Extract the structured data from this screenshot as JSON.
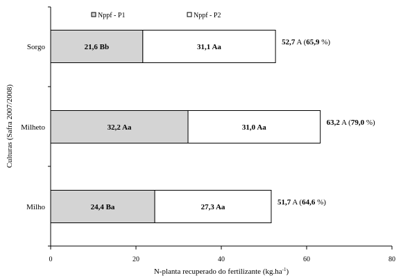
{
  "chart_data": {
    "type": "bar",
    "orientation": "horizontal",
    "stacked": true,
    "ylabel": "Culturas (Safra 2007/2008)",
    "xlabel": "N-planta recuperado do fertilizante (kg.ha",
    "xlabel_superscript": "-1",
    "xlabel_suffix": ")",
    "xlim": [
      0,
      80
    ],
    "xticks": [
      "0",
      "20",
      "40",
      "60",
      "80"
    ],
    "grid": false,
    "legend_placement": "top",
    "categories": [
      "Sorgo",
      "Milheto",
      "Milho"
    ],
    "series": [
      {
        "name": "Nppf - P1",
        "color": "#d4d4d4",
        "values": [
          21.6,
          32.2,
          24.4
        ],
        "labels": [
          "21,6 Bb",
          "32,2 Aa",
          "24,4 Ba"
        ]
      },
      {
        "name": "Nppf - P2",
        "color": "#ffffff",
        "values": [
          31.1,
          31.0,
          27.3
        ],
        "labels": [
          "31,1 Aa",
          "31,0 Aa",
          "27,3 Aa"
        ]
      }
    ],
    "totals": [
      {
        "value": 52.7,
        "bold": "52,7",
        "rest": " A (",
        "bold2": "65,9",
        "end": " %)"
      },
      {
        "value": 63.2,
        "bold": "63,2",
        "rest": " A (",
        "bold2": "79,0",
        "end": " %)"
      },
      {
        "value": 51.7,
        "bold": "51,7",
        "rest": " A (",
        "bold2": "64,6",
        "end": " %)"
      }
    ]
  }
}
